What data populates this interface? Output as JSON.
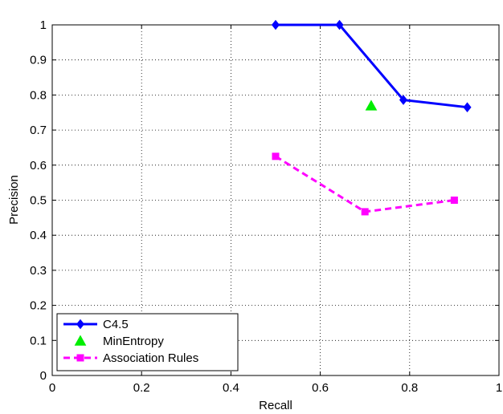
{
  "chart_data": {
    "type": "line",
    "title": "",
    "xlabel": "Recall",
    "ylabel": "Precision",
    "xlim": [
      0,
      1
    ],
    "ylim": [
      0,
      1
    ],
    "x_ticks": [
      "0",
      "0.2",
      "0.4",
      "0.6",
      "0.8",
      "1"
    ],
    "y_ticks": [
      "0",
      "0.1",
      "0.2",
      "0.3",
      "0.4",
      "0.5",
      "0.6",
      "0.7",
      "0.8",
      "0.9",
      "1"
    ],
    "grid": true,
    "legend_position": "bottom-left",
    "series": [
      {
        "name": "C4.5",
        "color": "#0000ff",
        "marker": "diamond",
        "line": "solid",
        "points": [
          [
            0.5,
            1.0
          ],
          [
            0.643,
            1.0
          ],
          [
            0.786,
            0.786
          ],
          [
            0.929,
            0.765
          ]
        ]
      },
      {
        "name": "MinEntropy",
        "color": "#00ee00",
        "marker": "triangle",
        "line": "none",
        "points": [
          [
            0.714,
            0.769
          ]
        ]
      },
      {
        "name": "Association Rules",
        "color": "#ff00ff",
        "marker": "square",
        "line": "dashed",
        "points": [
          [
            0.5,
            0.625
          ],
          [
            0.7,
            0.467
          ],
          [
            0.9,
            0.5
          ]
        ]
      }
    ]
  }
}
